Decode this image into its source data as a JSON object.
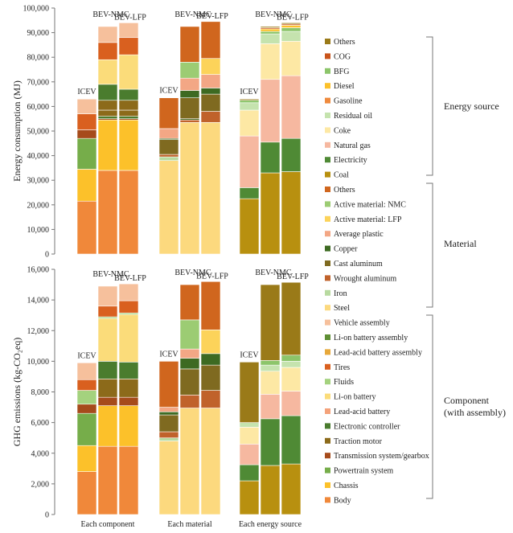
{
  "chart_data": {
    "type": "bar",
    "stacked": true,
    "categories": [
      "Each component",
      "Each material",
      "Each energy source"
    ],
    "vehicles": [
      "ICEV",
      "BEV-NMC",
      "BEV-LFP"
    ],
    "colors": {
      "Body": "#f0883a",
      "Chassis": "#fcc12a",
      "Powertrain system": "#76ad4a",
      "Transmission system/gearbox": "#a64b1b",
      "Traction motor": "#8c6a1a",
      "Electronic controller": "#4a7c2e",
      "Lead-acid battery": "#f4a27a",
      "Li-on battery": "#fbdc7a",
      "Fluids": "#a4d27e",
      "Tires": "#d9601f",
      "Lead-acid battery assembly": "#e7a83a",
      "Li-on battery assembly": "#5f8f35",
      "Vehicle assembly": "#f6c09c",
      "Steel": "#fcd97e",
      "Iron": "#b8daa0",
      "Wrought aluminum": "#c0622b",
      "Cast aluminum": "#7f6a20",
      "Copper": "#3d6a22",
      "Average plastic": "#f3a785",
      "Active material: LFP": "#fcd35a",
      "Active material: NMC": "#9ccc73",
      "Others": "#d0661e",
      "Coal": "#b8900f",
      "Electricity": "#4f8a35",
      "Natural gas": "#f6b8a0",
      "Coke": "#fde8a4",
      "Residual oil": "#c5e3ae",
      "Gasoline": "#ef8a3d",
      "Diesel": "#fcc12a",
      "BFG": "#8cc56a",
      "COG": "#c9541b",
      "Energy Others": "#9a7a18"
    },
    "energy": {
      "ylabel": "Energy consumption (MJ)",
      "ylim": [
        0,
        100000
      ],
      "yticks": [
        "0",
        "10,000",
        "20,000",
        "30,000",
        "40,000",
        "50,000",
        "60,000",
        "70,000",
        "80,000",
        "90,000",
        "100,000"
      ],
      "groups": [
        [
          [
            [
              "Body",
              21500
            ],
            [
              "Chassis",
              13000
            ],
            [
              "Powertrain system",
              12500
            ],
            [
              "Transmission system/gearbox",
              3500
            ],
            [
              "Tires",
              6500
            ],
            [
              "Vehicle assembly",
              6000
            ]
          ],
          [
            [
              "Body",
              34000
            ],
            [
              "Chassis",
              20500
            ],
            [
              "Transmission system/gearbox",
              500
            ],
            [
              "Electronic controller",
              1000
            ],
            [
              "Traction motor",
              2500
            ],
            [
              "Li-on battery",
              0
            ],
            [
              "Lead-acid battery",
              0
            ],
            [
              "Fluids",
              0
            ],
            [
              "Traction motor",
              4000
            ],
            [
              "Electronic controller",
              6500
            ],
            [
              "Li-on battery",
              10000
            ],
            [
              "Tires",
              7000
            ],
            [
              "Vehicle assembly",
              6500
            ]
          ],
          [
            [
              "Body",
              34000
            ],
            [
              "Chassis",
              20500
            ],
            [
              "Transmission system/gearbox",
              500
            ],
            [
              "Electronic controller",
              1000
            ],
            [
              "Traction motor",
              2500
            ],
            [
              "Traction motor",
              4000
            ],
            [
              "Electronic controller",
              4500
            ],
            [
              "Li-on battery",
              14000
            ],
            [
              "Tires",
              7000
            ],
            [
              "Vehicle assembly",
              6000
            ]
          ]
        ],
        [
          [
            [
              "Steel",
              38000
            ],
            [
              "Iron",
              1500
            ],
            [
              "Wrought aluminum",
              1000
            ],
            [
              "Cast aluminum",
              6000
            ],
            [
              "Copper",
              500
            ],
            [
              "Average plastic",
              4000
            ],
            [
              "Others",
              12500
            ]
          ],
          [
            [
              "Steel",
              53500
            ],
            [
              "Wrought aluminum",
              1000
            ],
            [
              "Copper",
              500
            ],
            [
              "Cast aluminum",
              8500
            ],
            [
              "Copper",
              3000
            ],
            [
              "Average plastic",
              5000
            ],
            [
              "Active material: NMC",
              6500
            ],
            [
              "Others",
              14500
            ]
          ],
          [
            [
              "Steel",
              53500
            ],
            [
              "Wrought aluminum",
              4500
            ],
            [
              "Cast aluminum",
              7000
            ],
            [
              "Copper",
              2500
            ],
            [
              "Average plastic",
              5500
            ],
            [
              "Active material: LFP",
              6500
            ],
            [
              "Others",
              15000
            ]
          ]
        ],
        [
          [
            [
              "Coal",
              22500
            ],
            [
              "Electricity",
              4500
            ],
            [
              "Natural gas",
              21000
            ],
            [
              "Coke",
              10500
            ],
            [
              "Residual oil",
              3000
            ],
            [
              "BFG",
              1000
            ],
            [
              "Energy Others",
              500
            ]
          ],
          [
            [
              "Coal",
              33000
            ],
            [
              "Electricity",
              12500
            ],
            [
              "Natural gas",
              25500
            ],
            [
              "Coke",
              14500
            ],
            [
              "Residual oil",
              4000
            ],
            [
              "BFG",
              1000
            ],
            [
              "Diesel",
              1000
            ],
            [
              "COG",
              500
            ],
            [
              "Energy Others",
              500
            ]
          ],
          [
            [
              "Coal",
              33500
            ],
            [
              "Electricity",
              13500
            ],
            [
              "Natural gas",
              25500
            ],
            [
              "Coke",
              14000
            ],
            [
              "Residual oil",
              4000
            ],
            [
              "BFG",
              1500
            ],
            [
              "Diesel",
              1000
            ],
            [
              "COG",
              500
            ],
            [
              "Energy Others",
              500
            ]
          ]
        ]
      ]
    },
    "ghg": {
      "ylabel": "GHG emissions (kg-CO₂eq)",
      "ylim": [
        0,
        16000
      ],
      "yticks": [
        "0",
        "2,000",
        "4,000",
        "6,000",
        "8,000",
        "10,000",
        "12,000",
        "14,000",
        "16,000"
      ],
      "groups": [
        [
          [
            [
              "Body",
              2800
            ],
            [
              "Chassis",
              1700
            ],
            [
              "Powertrain system",
              2100
            ],
            [
              "Transmission system/gearbox",
              600
            ],
            [
              "Fluids",
              900
            ],
            [
              "Tires",
              700
            ],
            [
              "Vehicle assembly",
              1100
            ]
          ],
          [
            [
              "Body",
              4450
            ],
            [
              "Chassis",
              2650
            ],
            [
              "Transmission system/gearbox",
              550
            ],
            [
              "Traction motor",
              1200
            ],
            [
              "Electronic controller",
              1150
            ],
            [
              "Li-on battery",
              2800
            ],
            [
              "Fluids",
              100
            ],
            [
              "Tires",
              700
            ],
            [
              "Vehicle assembly",
              1300
            ]
          ],
          [
            [
              "Body",
              4450
            ],
            [
              "Chassis",
              2650
            ],
            [
              "Transmission system/gearbox",
              550
            ],
            [
              "Traction motor",
              1200
            ],
            [
              "Electronic controller",
              1100
            ],
            [
              "Li-on battery",
              3100
            ],
            [
              "Fluids",
              100
            ],
            [
              "Tires",
              800
            ],
            [
              "Vehicle assembly",
              1100
            ]
          ]
        ],
        [
          [
            [
              "Steel",
              4800
            ],
            [
              "Iron",
              200
            ],
            [
              "Wrought aluminum",
              400
            ],
            [
              "Cast aluminum",
              1100
            ],
            [
              "Copper",
              200
            ],
            [
              "Average plastic",
              300
            ],
            [
              "Others",
              3000
            ]
          ],
          [
            [
              "Steel",
              6950
            ],
            [
              "Wrought aluminum",
              850
            ],
            [
              "Cast aluminum",
              1700
            ],
            [
              "Copper",
              700
            ],
            [
              "Average plastic",
              600
            ],
            [
              "Active material: NMC",
              1900
            ],
            [
              "Others",
              2300
            ]
          ],
          [
            [
              "Steel",
              6950
            ],
            [
              "Wrought aluminum",
              1150
            ],
            [
              "Cast aluminum",
              1650
            ],
            [
              "Copper",
              750
            ],
            [
              "Active material: LFP",
              1550
            ],
            [
              "Others",
              3150
            ]
          ]
        ],
        [
          [
            [
              "Coal",
              2200
            ],
            [
              "Electricity",
              1050
            ],
            [
              "Natural gas",
              1350
            ],
            [
              "Coke",
              1100
            ],
            [
              "Residual oil",
              300
            ],
            [
              "Energy Others",
              3950
            ]
          ],
          [
            [
              "Coal",
              3200
            ],
            [
              "Electricity",
              3050
            ],
            [
              "Natural gas",
              1600
            ],
            [
              "Coke",
              1500
            ],
            [
              "Residual oil",
              400
            ],
            [
              "BFG",
              300
            ],
            [
              "Energy Others",
              4950
            ]
          ],
          [
            [
              "Coal",
              3300
            ],
            [
              "Electricity",
              3150
            ],
            [
              "Natural gas",
              1600
            ],
            [
              "Coke",
              1550
            ],
            [
              "Residual oil",
              400
            ],
            [
              "BFG",
              400
            ],
            [
              "Energy Others",
              4750
            ]
          ]
        ]
      ]
    },
    "legend": {
      "energy_source": [
        "Others",
        "COG",
        "BFG",
        "Diesel",
        "Gasoline",
        "Residual oil",
        "Coke",
        "Natural gas",
        "Electricity",
        "Coal"
      ],
      "energy_source_keys": [
        "Energy Others",
        "COG",
        "BFG",
        "Diesel",
        "Gasoline",
        "Residual oil",
        "Coke",
        "Natural gas",
        "Electricity",
        "Coal"
      ],
      "material": [
        "Others",
        "Active material: NMC",
        "Active material: LFP",
        "Average plastic",
        "Copper",
        "Cast aluminum",
        "Wrought aluminum",
        "Iron",
        "Steel"
      ],
      "material_keys": [
        "Others",
        "Active material: NMC",
        "Active material: LFP",
        "Average plastic",
        "Copper",
        "Cast aluminum",
        "Wrought aluminum",
        "Iron",
        "Steel"
      ],
      "component": [
        "Vehicle assembly",
        "Li-on battery assembly",
        "Lead-acid battery assembly",
        "Tires",
        "Fluids",
        "Li-on battery",
        "Lead-acid battery",
        "Electronic controller",
        "Traction motor",
        "Transmission system/gearbox",
        "Powertrain system",
        "Chassis",
        "Body"
      ],
      "component_keys": [
        "Vehicle assembly",
        "Li-on battery assembly",
        "Lead-acid battery assembly",
        "Tires",
        "Fluids",
        "Li-on battery",
        "Lead-acid battery",
        "Electronic controller",
        "Traction motor",
        "Transmission system/gearbox",
        "Powertrain system",
        "Chassis",
        "Body"
      ]
    },
    "brackets": {
      "energy_source": "Energy source",
      "material": "Material",
      "component_line1": "Component",
      "component_line2": "(with assembly)"
    }
  }
}
